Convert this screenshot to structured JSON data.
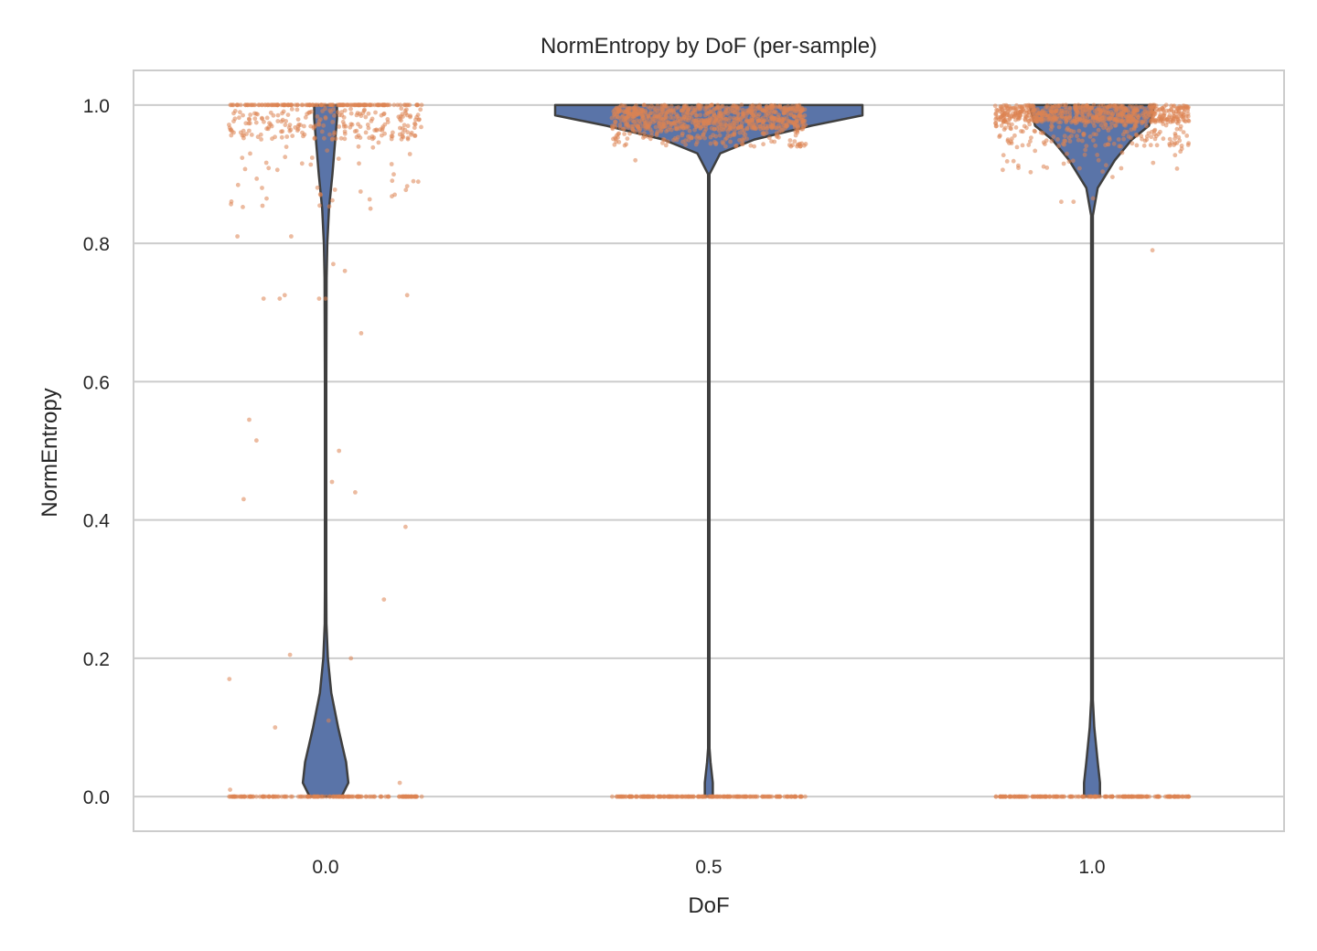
{
  "chart_data": {
    "type": "violin",
    "title": "NormEntropy by DoF (per-sample)",
    "xlabel": "DoF",
    "ylabel": "NormEntropy",
    "categories": [
      "0.0",
      "0.5",
      "1.0"
    ],
    "ylim": [
      -0.05,
      1.05
    ],
    "yticks": [
      0.0,
      0.2,
      0.4,
      0.6,
      0.8,
      1.0
    ],
    "ytick_labels": [
      "0.0",
      "0.2",
      "0.4",
      "0.6",
      "0.8",
      "1.0"
    ],
    "grid": true,
    "colors": {
      "violin": "#5a74a8",
      "outline": "#3f3f3f",
      "points": "#dd8452",
      "grid": "#cccccc",
      "frame": "#cccccc"
    },
    "violins": [
      {
        "category": "0.0",
        "profile": [
          [
            0.0,
            0.028
          ],
          [
            0.02,
            0.04
          ],
          [
            0.05,
            0.036
          ],
          [
            0.1,
            0.022
          ],
          [
            0.15,
            0.01
          ],
          [
            0.2,
            0.004
          ],
          [
            0.25,
            0.0015
          ],
          [
            0.3,
            0.0012
          ],
          [
            0.6,
            0.0012
          ],
          [
            0.75,
            0.0018
          ],
          [
            0.8,
            0.003
          ],
          [
            0.85,
            0.006
          ],
          [
            0.9,
            0.012
          ],
          [
            0.95,
            0.017
          ],
          [
            0.98,
            0.02
          ],
          [
            1.0,
            0.02
          ]
        ]
      },
      {
        "category": "0.5",
        "profile": [
          [
            0.0,
            0.007
          ],
          [
            0.02,
            0.007
          ],
          [
            0.05,
            0.003
          ],
          [
            0.07,
            0.0012
          ],
          [
            0.9,
            0.0012
          ],
          [
            0.93,
            0.02
          ],
          [
            0.95,
            0.08
          ],
          [
            0.97,
            0.18
          ],
          [
            0.985,
            0.27
          ],
          [
            1.0,
            0.27
          ]
        ]
      },
      {
        "category": "1.0",
        "profile": [
          [
            0.0,
            0.014
          ],
          [
            0.02,
            0.014
          ],
          [
            0.05,
            0.01
          ],
          [
            0.1,
            0.004
          ],
          [
            0.14,
            0.0015
          ],
          [
            0.84,
            0.0015
          ],
          [
            0.88,
            0.01
          ],
          [
            0.92,
            0.04
          ],
          [
            0.95,
            0.07
          ],
          [
            0.97,
            0.1
          ],
          [
            1.0,
            0.11
          ]
        ]
      }
    ],
    "strip_points": [
      {
        "category": "0.0",
        "clusters": [
          {
            "y_min": 1.0,
            "y_max": 1.0,
            "count": 160
          },
          {
            "y_min": 0.95,
            "y_max": 0.995,
            "count": 220
          },
          {
            "y_min": 0.85,
            "y_max": 0.95,
            "count": 45
          },
          {
            "y_min": 0.0,
            "y_max": 0.0,
            "count": 160
          }
        ],
        "outliers": [
          0.81,
          0.81,
          0.77,
          0.76,
          0.725,
          0.725,
          0.72,
          0.72,
          0.72,
          0.72,
          0.67,
          0.545,
          0.515,
          0.5,
          0.455,
          0.44,
          0.43,
          0.39,
          0.285,
          0.205,
          0.2,
          0.17,
          0.11,
          0.1,
          0.02,
          0.01
        ]
      },
      {
        "category": "0.5",
        "clusters": [
          {
            "y_min": 0.965,
            "y_max": 1.0,
            "count": 700
          },
          {
            "y_min": 0.94,
            "y_max": 0.965,
            "count": 140
          },
          {
            "y_min": 0.0,
            "y_max": 0.0,
            "count": 200
          }
        ],
        "outliers": [
          0.92
        ]
      },
      {
        "category": "1.0",
        "clusters": [
          {
            "y_min": 0.975,
            "y_max": 1.0,
            "count": 600
          },
          {
            "y_min": 0.94,
            "y_max": 0.975,
            "count": 160
          },
          {
            "y_min": 0.895,
            "y_max": 0.94,
            "count": 30
          },
          {
            "y_min": 0.0,
            "y_max": 0.0,
            "count": 200
          }
        ],
        "outliers": [
          0.865,
          0.86,
          0.86,
          0.79
        ]
      }
    ]
  }
}
